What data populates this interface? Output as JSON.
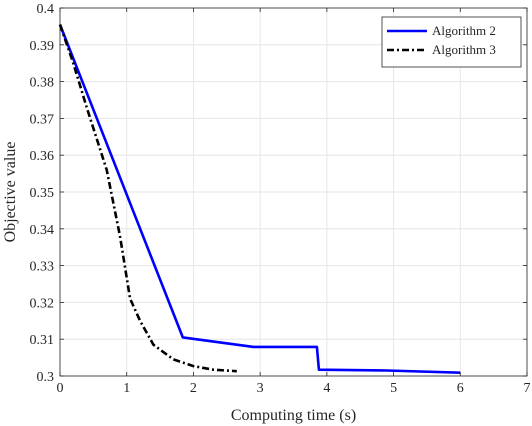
{
  "chart_data": {
    "type": "line",
    "title": "",
    "xlabel": "Computing time (s)",
    "ylabel": "Objective value",
    "xlim": [
      0,
      7
    ],
    "ylim": [
      0.3,
      0.4
    ],
    "xticks": [
      "0",
      "1",
      "2",
      "3",
      "4",
      "5",
      "6",
      "7"
    ],
    "yticks": [
      "0.3",
      "0.31",
      "0.32",
      "0.33",
      "0.34",
      "0.35",
      "0.36",
      "0.37",
      "0.38",
      "0.39",
      "0.4"
    ],
    "grid": true,
    "legend_position": "top-right",
    "series": [
      {
        "name": "Algorithm 2",
        "color": "#0000ff",
        "style": "solid",
        "x": [
          0,
          1.84,
          2.9,
          3.85,
          3.88,
          4.9,
          6.0
        ],
        "y": [
          0.3955,
          0.3105,
          0.3079,
          0.3079,
          0.3017,
          0.3015,
          0.3009
        ]
      },
      {
        "name": "Algorithm 3",
        "color": "#000000",
        "style": "dash-dot",
        "x": [
          0,
          0.2,
          0.4,
          0.7,
          0.9,
          1.05,
          1.2,
          1.4,
          1.7,
          2.0,
          2.3,
          2.65
        ],
        "y": [
          0.3955,
          0.385,
          0.373,
          0.356,
          0.338,
          0.321,
          0.315,
          0.3085,
          0.3045,
          0.3027,
          0.3017,
          0.3013
        ]
      }
    ]
  }
}
